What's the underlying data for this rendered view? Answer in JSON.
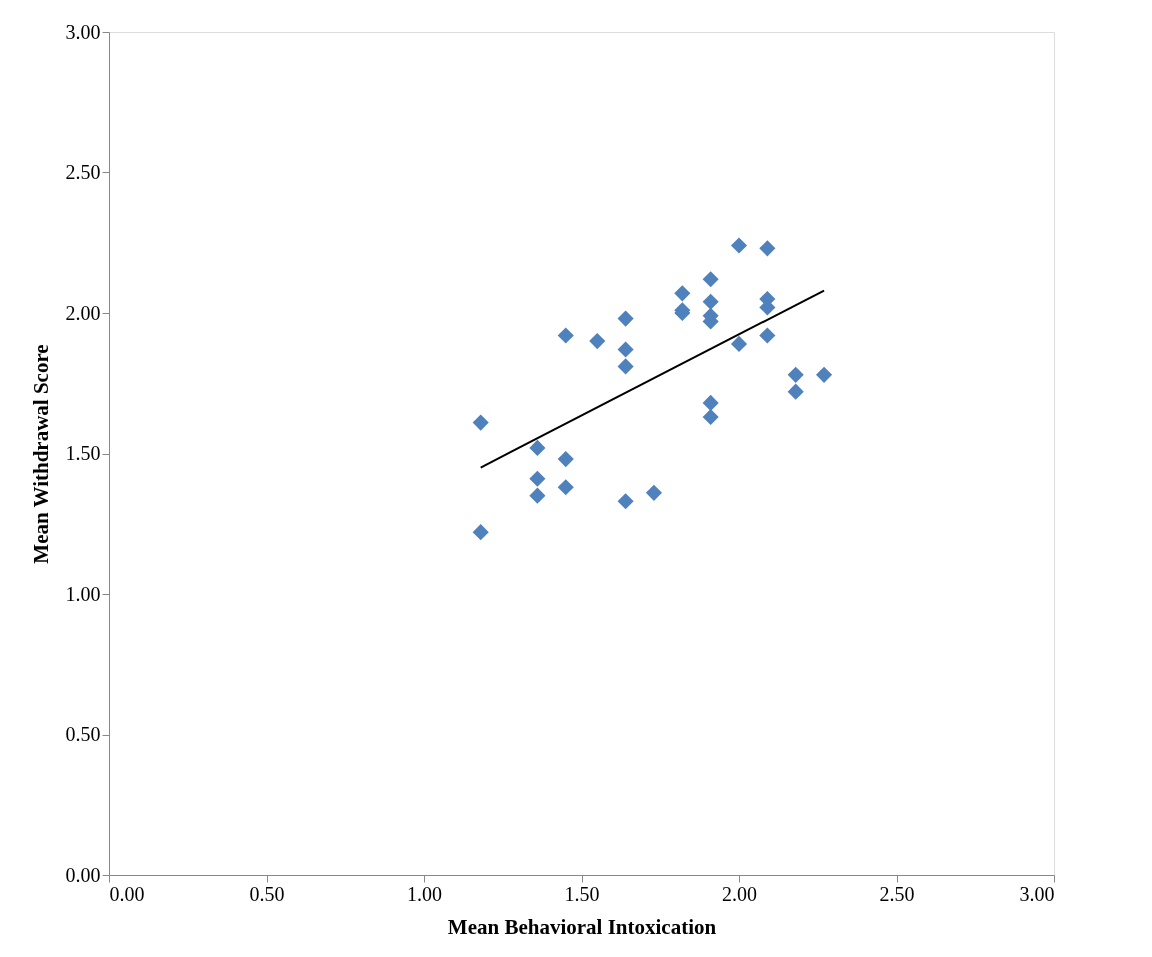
{
  "chart_data": {
    "type": "scatter",
    "xlabel": "Mean Behavioral Intoxication",
    "ylabel": "Mean Withdrawal Score",
    "xlim": [
      0,
      3
    ],
    "ylim": [
      0,
      3
    ],
    "xticks": [
      {
        "value": 0,
        "label": "0.00"
      },
      {
        "value": 0.5,
        "label": "0.50"
      },
      {
        "value": 1,
        "label": "1.00"
      },
      {
        "value": 1.5,
        "label": "1.50"
      },
      {
        "value": 2,
        "label": "2.00"
      },
      {
        "value": 2.5,
        "label": "2.50"
      },
      {
        "value": 3,
        "label": "3.00"
      }
    ],
    "yticks": [
      {
        "value": 0,
        "label": "0.00"
      },
      {
        "value": 0.5,
        "label": "0.50"
      },
      {
        "value": 1,
        "label": "1.00"
      },
      {
        "value": 1.5,
        "label": "1.50"
      },
      {
        "value": 2,
        "label": "2.00"
      },
      {
        "value": 2.5,
        "label": "2.50"
      },
      {
        "value": 3,
        "label": "3.00"
      }
    ],
    "series": [
      {
        "color": "#4f81bd",
        "marker": "diamond",
        "x": [
          1.18,
          1.18,
          1.36,
          1.36,
          1.36,
          1.45,
          1.45,
          1.45,
          1.55,
          1.64,
          1.64,
          1.64,
          1.64,
          1.73,
          1.82,
          1.82,
          1.82,
          1.91,
          1.91,
          1.91,
          1.91,
          1.91,
          1.91,
          2.0,
          2.0,
          2.09,
          2.09,
          2.09,
          2.09,
          2.18,
          2.18,
          2.27
        ],
        "values": [
          1.61,
          1.22,
          1.52,
          1.41,
          1.35,
          1.92,
          1.48,
          1.38,
          1.9,
          1.98,
          1.87,
          1.81,
          1.33,
          1.36,
          2.07,
          2.01,
          2.0,
          2.12,
          2.04,
          1.99,
          1.97,
          1.68,
          1.63,
          2.24,
          1.89,
          2.23,
          2.05,
          2.02,
          1.92,
          1.78,
          1.72,
          1.78
        ]
      },
      {
        "type": "line",
        "color": "#000000",
        "line_style": "solid",
        "x": [
          1.18,
          2.27
        ],
        "values": [
          1.45,
          2.08
        ]
      }
    ]
  }
}
